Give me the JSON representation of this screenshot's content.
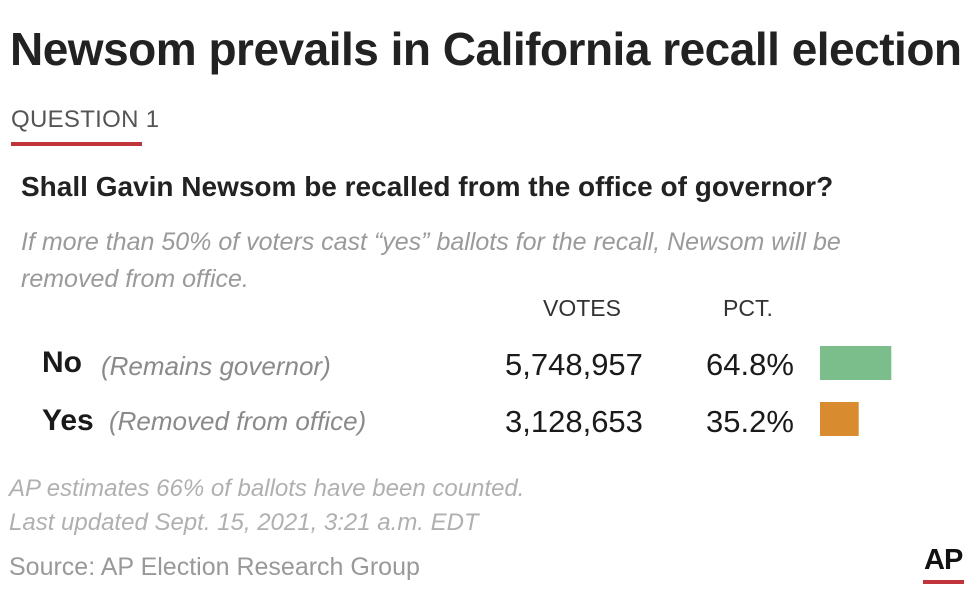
{
  "headline": "Newsom prevails in California recall election",
  "kicker": "QUESTION 1",
  "question": "Shall Gavin Newsom be recalled from the office of governor?",
  "explainer": "If more than 50% of voters cast “yes” ballots for the recall, Newsom will be removed from office.",
  "columns": {
    "votes": "VOTES",
    "pct": "PCT."
  },
  "colors": {
    "no": "#7bbd8b",
    "yes": "#d98c2f",
    "accent": "#c0343c"
  },
  "rows": [
    {
      "choice": "No",
      "note": "(Remains governor)",
      "votes": "5,748,957",
      "pct": "64.8%"
    },
    {
      "choice": "Yes",
      "note": "(Removed from office)",
      "votes": "3,128,653",
      "pct": "35.2%"
    }
  ],
  "chart_data": {
    "type": "bar",
    "orientation": "horizontal",
    "title": "Newsom prevails in California recall election",
    "categories": [
      "No",
      "Yes"
    ],
    "values": [
      64.8,
      35.2
    ],
    "votes": [
      5748957,
      3128653
    ],
    "xlabel": "",
    "ylabel": "",
    "xlim": [
      0,
      100
    ],
    "colors": [
      "#7bbd8b",
      "#d98c2f"
    ]
  },
  "footnotes": [
    "AP estimates 66% of ballots have been counted.",
    "Last updated Sept. 15, 2021, 3:21 a.m. EDT"
  ],
  "source": "Source: AP Election Research Group",
  "logo": "AP"
}
